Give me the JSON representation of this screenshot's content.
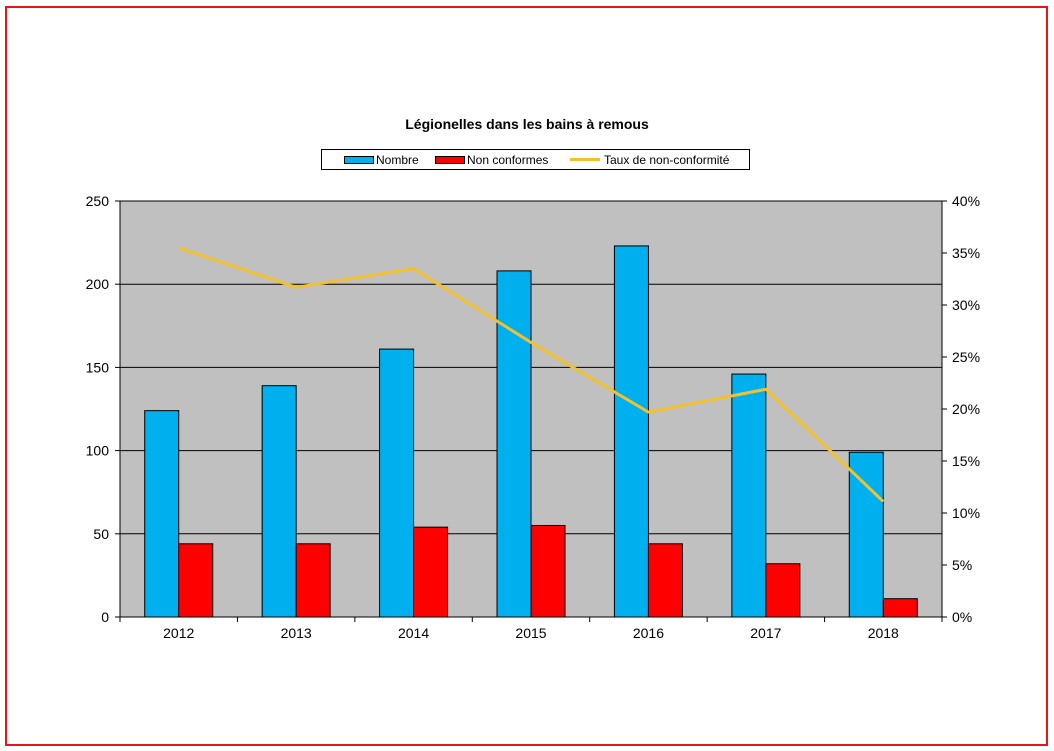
{
  "chart_data": {
    "type": "bar",
    "title": "Légionelles dans les bains à remous",
    "xlabel": "",
    "ylabel": "",
    "y2label": "",
    "categories": [
      "2012",
      "2013",
      "2014",
      "2015",
      "2016",
      "2017",
      "2018"
    ],
    "ylim": [
      0,
      250
    ],
    "yticks": [
      "0",
      "50",
      "100",
      "150",
      "200",
      "250"
    ],
    "y2lim": [
      0,
      0.4
    ],
    "y2ticks": [
      "0%",
      "5%",
      "10%",
      "15%",
      "20%",
      "25%",
      "30%",
      "35%",
      "40%"
    ],
    "grid": true,
    "legend_position": "top",
    "series": [
      {
        "name": "Nombre",
        "type": "bar",
        "axis": "left",
        "color": "#00b0ee",
        "values": [
          124,
          139,
          161,
          208,
          223,
          146,
          99
        ]
      },
      {
        "name": "Non conformes",
        "type": "bar",
        "axis": "left",
        "color": "#ff0000",
        "values": [
          44,
          44,
          54,
          55,
          44,
          32,
          11
        ]
      },
      {
        "name": "Taux de non-conformité",
        "type": "line",
        "axis": "right",
        "color": "#f2c12e",
        "values": [
          0.355,
          0.317,
          0.335,
          0.264,
          0.197,
          0.219,
          0.111
        ]
      }
    ],
    "plot_background": "#c0c0c0",
    "frame_color": "#e8151b"
  }
}
